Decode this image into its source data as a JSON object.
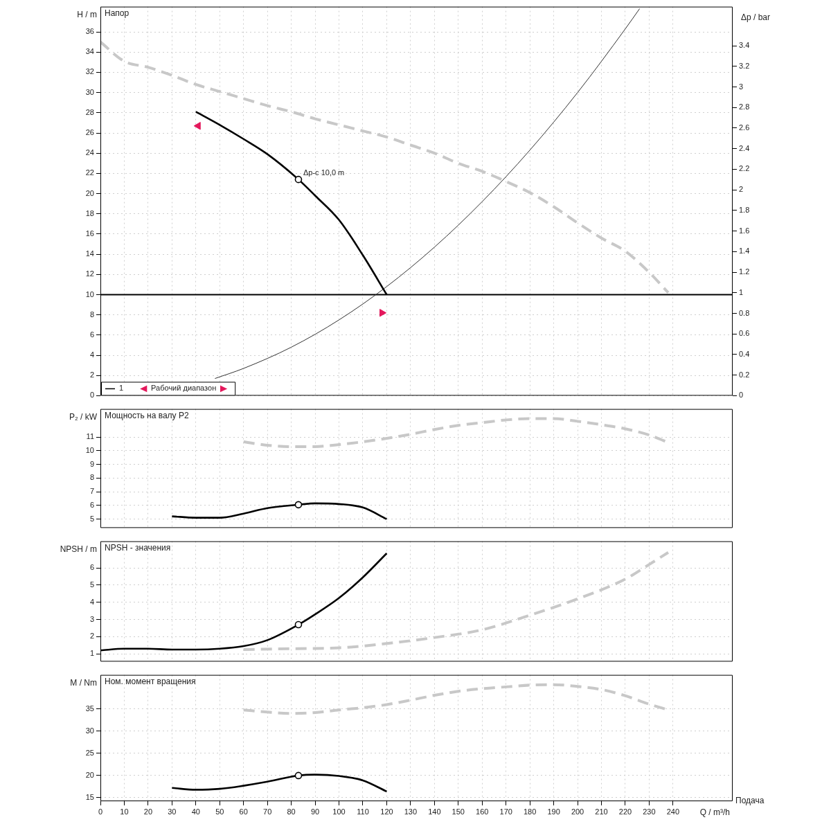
{
  "chart_data": [
    {
      "type": "line",
      "title": "Напор",
      "ylabel": "H / m",
      "y2label": "Δp / bar",
      "xlim": [
        0,
        265
      ],
      "xticks": [
        0,
        10,
        20,
        30,
        40,
        50,
        60,
        70,
        80,
        90,
        100,
        110,
        120,
        130,
        140,
        150,
        160,
        170,
        180,
        190,
        200,
        210,
        220,
        230,
        240
      ],
      "ylim": [
        0,
        38.5
      ],
      "yticks": [
        0,
        2,
        4,
        6,
        8,
        10,
        12,
        14,
        16,
        18,
        20,
        22,
        24,
        26,
        28,
        30,
        32,
        34,
        36
      ],
      "y2lim": [
        0,
        3.78
      ],
      "y2ticks": [
        0,
        0.2,
        0.4,
        0.6,
        0.8,
        1,
        1.2,
        1.4,
        1.6,
        1.8,
        2,
        2.2,
        2.4,
        2.6,
        2.8,
        3,
        3.2,
        3.4
      ],
      "grid": true,
      "tick_labels": "y",
      "legend": "bottom left",
      "series": [
        {
          "name": "1",
          "color": "#000000",
          "x": [
            40,
            50,
            60,
            70,
            83,
            90,
            100,
            110,
            120
          ],
          "values": [
            28.1,
            26.8,
            25.4,
            23.9,
            21.4,
            19.8,
            17.4,
            13.9,
            10.0
          ]
        },
        {
          "color": "#c8c8c8",
          "line_style": "dashed",
          "x": [
            0,
            10,
            20,
            30,
            40,
            50,
            60,
            70,
            80,
            90,
            100,
            110,
            120,
            130,
            140,
            150,
            160,
            170,
            180,
            190,
            200,
            210,
            220,
            230,
            238
          ],
          "values": [
            35.0,
            33.1,
            32.5,
            31.7,
            30.8,
            30.1,
            29.4,
            28.7,
            28.1,
            27.4,
            26.8,
            26.2,
            25.6,
            24.8,
            24.0,
            23.0,
            22.2,
            21.2,
            20.1,
            18.7,
            17.1,
            15.6,
            14.3,
            12.2,
            10.2
          ]
        },
        {
          "color": "#333333",
          "x": [
            48,
            60,
            80,
            100,
            120,
            140,
            160,
            180,
            200,
            220,
            226
          ],
          "values": [
            1.7,
            2.7,
            4.8,
            7.5,
            10.8,
            14.7,
            19.2,
            24.3,
            30.0,
            36.3,
            38.3
          ]
        },
        {
          "type": "scatter",
          "color": "#000000",
          "marker": "circle",
          "x": [
            83
          ],
          "values": [
            21.4
          ]
        },
        {
          "name": "Рабочий диапазон",
          "type": "scatter",
          "color": "#e4185c",
          "marker": "triangle",
          "x": [
            41,
            118
          ],
          "values": [
            26.7,
            8.2
          ]
        }
      ],
      "ref_lines": [
        {
          "axis": "y",
          "value": 10,
          "color": "#000000"
        }
      ],
      "annotations": [
        {
          "text": "Δp-c 10,0 m",
          "x": 83,
          "y": 21.4
        }
      ]
    },
    {
      "type": "line",
      "title": "Мощность на валу P2",
      "ylabel": "P₂ / kW",
      "xlim": [
        0,
        265
      ],
      "xticks": [
        0,
        10,
        20,
        30,
        40,
        50,
        60,
        70,
        80,
        90,
        100,
        110,
        120,
        130,
        140,
        150,
        160,
        170,
        180,
        190,
        200,
        210,
        220,
        230,
        240
      ],
      "ylim": [
        4.35,
        13.05
      ],
      "yticks": [
        5,
        6,
        7,
        8,
        9,
        10,
        11
      ],
      "grid": true,
      "tick_labels": "y",
      "series": [
        {
          "color": "#000000",
          "x": [
            30,
            40,
            50,
            60,
            70,
            83,
            90,
            100,
            110,
            120
          ],
          "values": [
            5.2,
            5.1,
            5.1,
            5.4,
            5.8,
            6.05,
            6.15,
            6.1,
            5.85,
            5.0
          ]
        },
        {
          "color": "#c8c8c8",
          "line_style": "dashed",
          "x": [
            60,
            70,
            80,
            90,
            100,
            110,
            120,
            130,
            140,
            150,
            160,
            170,
            180,
            190,
            200,
            210,
            220,
            230,
            238
          ],
          "values": [
            10.65,
            10.4,
            10.3,
            10.3,
            10.45,
            10.65,
            10.9,
            11.2,
            11.55,
            11.85,
            12.05,
            12.25,
            12.35,
            12.35,
            12.15,
            11.9,
            11.6,
            11.15,
            10.6
          ]
        },
        {
          "type": "scatter",
          "color": "#000000",
          "marker": "circle",
          "x": [
            83
          ],
          "values": [
            6.05
          ]
        }
      ]
    },
    {
      "type": "line",
      "title": "NPSH - значения",
      "ylabel": "NPSH / m",
      "xlim": [
        0,
        265
      ],
      "xticks": [
        0,
        10,
        20,
        30,
        40,
        50,
        60,
        70,
        80,
        90,
        100,
        110,
        120,
        130,
        140,
        150,
        160,
        170,
        180,
        190,
        200,
        210,
        220,
        230,
        240
      ],
      "ylim": [
        0.55,
        7.55
      ],
      "yticks": [
        1,
        2,
        3,
        4,
        5,
        6
      ],
      "grid": true,
      "tick_labels": "y",
      "series": [
        {
          "color": "#000000",
          "x": [
            0,
            10,
            20,
            30,
            40,
            50,
            60,
            70,
            83,
            90,
            100,
            110,
            120
          ],
          "values": [
            1.2,
            1.3,
            1.3,
            1.25,
            1.25,
            1.3,
            1.45,
            1.8,
            2.7,
            3.3,
            4.25,
            5.45,
            6.85
          ]
        },
        {
          "color": "#c8c8c8",
          "line_style": "dashed",
          "x": [
            60,
            80,
            100,
            120,
            140,
            160,
            180,
            200,
            220,
            230,
            238
          ],
          "values": [
            1.25,
            1.3,
            1.35,
            1.6,
            1.95,
            2.4,
            3.25,
            4.2,
            5.35,
            6.2,
            6.9
          ]
        },
        {
          "type": "scatter",
          "color": "#000000",
          "marker": "circle",
          "x": [
            83
          ],
          "values": [
            2.7
          ]
        }
      ]
    },
    {
      "type": "line",
      "title": "Ном. момент вращения",
      "ylabel": "M / Nm",
      "xlabel": "Q / m³/h",
      "xlim": [
        0,
        265
      ],
      "xticks": [
        0,
        10,
        20,
        30,
        40,
        50,
        60,
        70,
        80,
        90,
        100,
        110,
        120,
        130,
        140,
        150,
        160,
        170,
        180,
        190,
        200,
        210,
        220,
        230,
        240
      ],
      "ylim": [
        14.2,
        42.7
      ],
      "yticks": [
        15,
        20,
        25,
        30,
        35
      ],
      "grid": true,
      "series": [
        {
          "color": "#000000",
          "x": [
            30,
            40,
            50,
            60,
            70,
            83,
            90,
            100,
            110,
            120
          ],
          "values": [
            17.2,
            16.8,
            17.0,
            17.7,
            18.6,
            20.0,
            20.2,
            19.9,
            18.9,
            16.4
          ]
        },
        {
          "color": "#c8c8c8",
          "line_style": "dashed",
          "x": [
            60,
            70,
            80,
            90,
            100,
            110,
            120,
            130,
            140,
            150,
            160,
            170,
            180,
            190,
            200,
            210,
            220,
            230,
            238
          ],
          "values": [
            34.8,
            34.3,
            34.0,
            34.2,
            34.8,
            35.3,
            36.0,
            37.0,
            38.1,
            39.0,
            39.6,
            40.0,
            40.4,
            40.5,
            40.1,
            39.4,
            38.0,
            36.1,
            34.8
          ]
        },
        {
          "type": "scatter",
          "color": "#000000",
          "marker": "circle",
          "x": [
            83
          ],
          "values": [
            20.0
          ]
        }
      ],
      "annotations": [
        "Подача"
      ]
    }
  ]
}
